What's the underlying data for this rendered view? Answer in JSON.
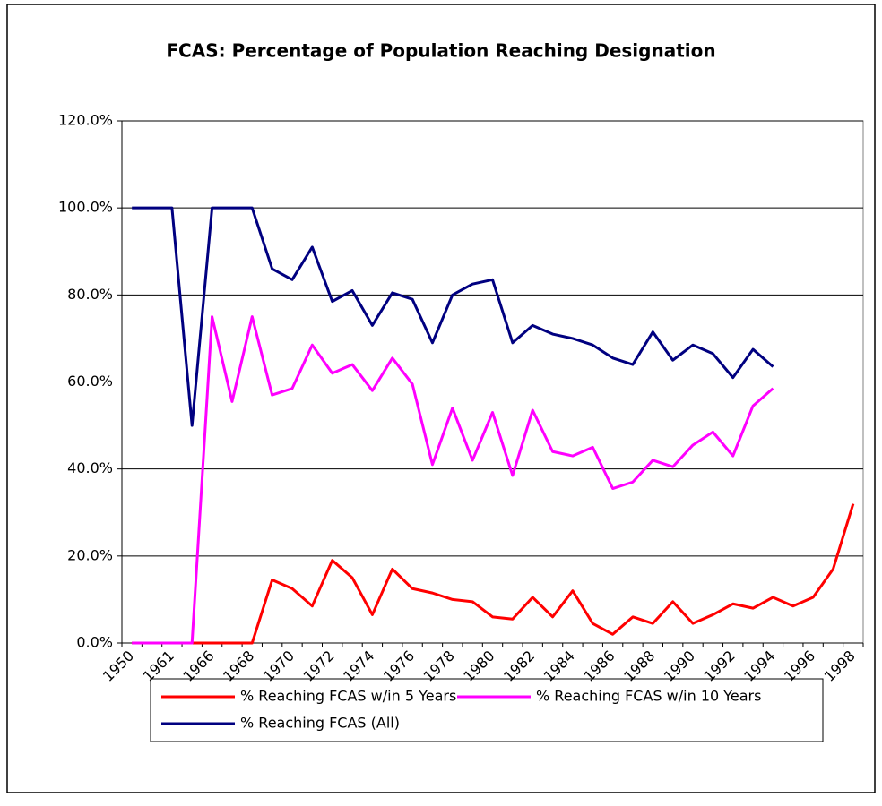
{
  "chart_data": {
    "type": "line",
    "title": "FCAS:  Percentage of Population Reaching Designation",
    "categories": [
      "1950",
      null,
      "1961",
      null,
      "1966",
      null,
      "1968",
      null,
      "1970",
      null,
      "1972",
      null,
      "1974",
      null,
      "1976",
      null,
      "1978",
      null,
      "1980",
      null,
      "1982",
      null,
      "1984",
      null,
      "1986",
      null,
      "1988",
      null,
      "1990",
      null,
      "1992",
      null,
      "1994",
      null,
      "1996",
      null,
      "1998"
    ],
    "series": [
      {
        "name": "% Reaching FCAS w/in 5 Years",
        "color": "#ff0000",
        "values": [
          0,
          0,
          0,
          0,
          0,
          0,
          0,
          14.5,
          12.5,
          8.5,
          19,
          15,
          6.5,
          17,
          12.5,
          11.5,
          10,
          9.5,
          6,
          5.5,
          10.5,
          6,
          12,
          4.5,
          2,
          6,
          4.5,
          9.5,
          4.5,
          6.5,
          9,
          8,
          10.5,
          8.5,
          10.5,
          17,
          32
        ]
      },
      {
        "name": "% Reaching FCAS w/in 10 Years",
        "color": "#ff00ff",
        "values": [
          0,
          0,
          0,
          0,
          75,
          55.5,
          75,
          57,
          58.5,
          68.5,
          62,
          64,
          58,
          65.5,
          59.5,
          41,
          54,
          42,
          53,
          38.5,
          53.5,
          44,
          43,
          45,
          35.5,
          37,
          42,
          40.5,
          45.5,
          48.5,
          43,
          54.5,
          58.5,
          null,
          null,
          null,
          null
        ]
      },
      {
        "name": "% Reaching FCAS (All)",
        "color": "#000080",
        "values": [
          100,
          100,
          100,
          50,
          100,
          100,
          100,
          86,
          83.5,
          91,
          78.5,
          81,
          73,
          80.5,
          79,
          69,
          80,
          82.5,
          83.5,
          69,
          73,
          71,
          70,
          68.5,
          65.5,
          64,
          71.5,
          65,
          68.5,
          66.5,
          61,
          67.5,
          63.5,
          null,
          null,
          null,
          null
        ]
      }
    ],
    "ylim": [
      0,
      120
    ],
    "yticks": [
      {
        "value": 0,
        "label": "0.0%"
      },
      {
        "value": 20,
        "label": "20.0%"
      },
      {
        "value": 40,
        "label": "40.0%"
      },
      {
        "value": 60,
        "label": "60.0%"
      },
      {
        "value": 80,
        "label": "80.0%"
      },
      {
        "value": 100,
        "label": "100.0%"
      },
      {
        "value": 120,
        "label": "120.0%"
      }
    ],
    "grid": true,
    "legend": "bottom"
  }
}
